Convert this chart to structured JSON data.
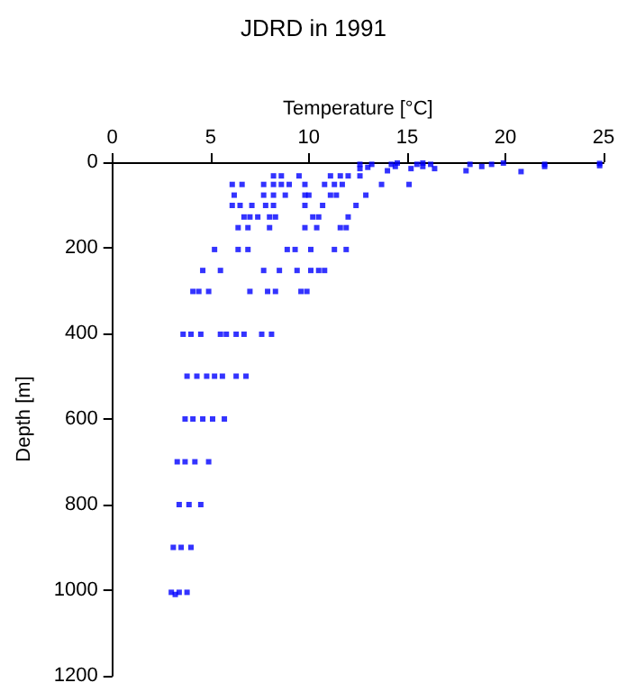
{
  "chart_data": {
    "type": "scatter",
    "title": "JDRD in 1991",
    "xlabel": "Temperature [°C]",
    "ylabel": "Depth [m]",
    "xlim": [
      0,
      25
    ],
    "xticks": [
      0,
      5,
      10,
      15,
      20,
      25
    ],
    "ylim": [
      1200,
      0
    ],
    "yticks": [
      0,
      200,
      400,
      600,
      800,
      1000,
      1200
    ],
    "grid": false,
    "marker": "square",
    "series": [
      {
        "color": "#0000ff",
        "x": [
          12.6,
          12.6,
          13.2,
          13.0,
          14.2,
          14.4,
          14.0,
          15.5,
          15.8,
          16.2,
          16.4,
          15.2,
          18.2,
          18.0,
          18.8,
          19.3,
          19.9,
          20.8,
          22.0,
          22.0,
          24.8,
          24.8,
          14.5,
          15.8,
          8.2,
          8.6,
          9.5,
          11.1,
          11.6,
          12.0,
          12.6,
          6.1,
          6.6,
          7.7,
          8.2,
          8.6,
          9.0,
          9.8,
          10.8,
          11.3,
          11.7,
          13.7,
          15.1,
          6.2,
          7.7,
          8.2,
          8.8,
          9.8,
          10.0,
          11.1,
          11.4,
          12.9,
          6.1,
          6.5,
          7.1,
          7.8,
          8.2,
          9.8,
          10.7,
          12.4,
          6.7,
          7.0,
          7.4,
          8.0,
          8.3,
          10.2,
          10.5,
          12.0,
          6.4,
          6.9,
          8.0,
          9.8,
          10.4,
          11.6,
          11.9,
          5.2,
          6.4,
          6.9,
          8.9,
          9.3,
          10.1,
          11.3,
          11.9,
          4.6,
          5.5,
          7.7,
          8.5,
          9.4,
          10.1,
          10.5,
          10.8,
          4.1,
          4.4,
          4.9,
          7.0,
          7.9,
          8.3,
          9.6,
          9.9,
          3.6,
          4.0,
          4.5,
          5.5,
          5.8,
          6.3,
          6.7,
          7.6,
          8.1,
          3.8,
          4.3,
          4.8,
          5.2,
          5.6,
          6.3,
          6.8,
          3.7,
          4.1,
          4.6,
          5.1,
          5.7,
          3.3,
          3.7,
          4.2,
          4.9,
          3.4,
          3.9,
          4.5,
          3.1,
          3.5,
          4.0,
          3.0,
          3.4,
          3.8,
          3.2
        ],
        "values": [
          5,
          15,
          5,
          12,
          5,
          10,
          20,
          5,
          10,
          5,
          15,
          15,
          5,
          20,
          10,
          5,
          2,
          22,
          5,
          10,
          3,
          8,
          2,
          2,
          32,
          32,
          32,
          32,
          32,
          32,
          32,
          52,
          52,
          52,
          52,
          52,
          52,
          52,
          52,
          52,
          52,
          52,
          52,
          77,
          77,
          77,
          77,
          77,
          77,
          77,
          77,
          77,
          101,
          101,
          101,
          101,
          101,
          101,
          101,
          101,
          128,
          128,
          128,
          128,
          128,
          128,
          128,
          128,
          153,
          153,
          153,
          153,
          153,
          153,
          153,
          204,
          204,
          204,
          204,
          204,
          204,
          204,
          204,
          253,
          253,
          253,
          253,
          253,
          253,
          253,
          253,
          302,
          302,
          302,
          302,
          302,
          302,
          302,
          302,
          402,
          402,
          402,
          402,
          402,
          402,
          402,
          402,
          402,
          500,
          500,
          500,
          500,
          500,
          500,
          500,
          600,
          600,
          600,
          600,
          600,
          700,
          700,
          700,
          700,
          800,
          800,
          800,
          900,
          900,
          900,
          1005,
          1005,
          1005,
          1010
        ]
      }
    ]
  }
}
